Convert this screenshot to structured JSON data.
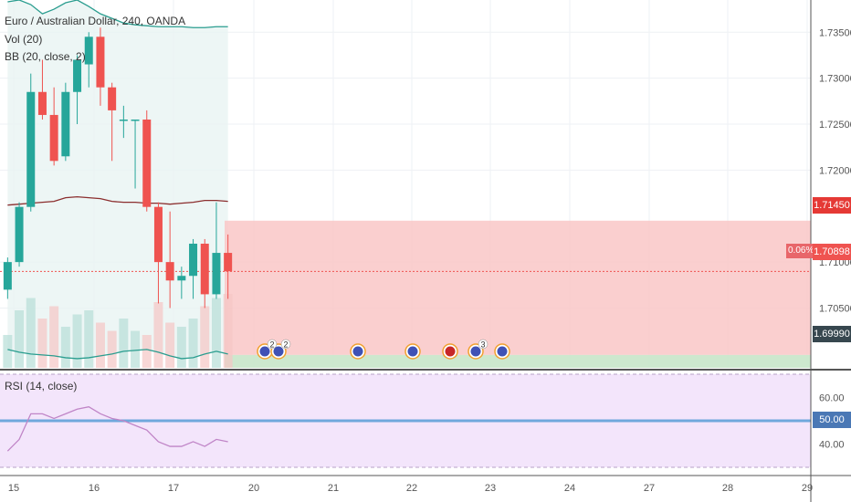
{
  "symbol_title": "Euro / Australian Dollar, 240, OANDA",
  "volume_label": "Vol (20)",
  "bb_label": "BB (20, close, 2)",
  "rsi_label": "RSI (14, close)",
  "price_axis": {
    "ticks": [
      "1.73500",
      "1.73000",
      "1.72500",
      "1.72000",
      "1.71000",
      "1.70500"
    ],
    "tick_values": [
      1.735,
      1.73,
      1.725,
      1.72,
      1.71,
      1.705
    ],
    "range": [
      1.6985,
      1.7385
    ]
  },
  "rsi_axis": {
    "ticks": [
      "60.00",
      "40.00"
    ],
    "tick_values": [
      60,
      40
    ],
    "range": [
      30,
      70
    ],
    "level_label": "50.00",
    "level_value": 50
  },
  "time_axis": {
    "ticks": [
      "15",
      "16",
      "17",
      "20",
      "21",
      "22",
      "23",
      "24",
      "27",
      "28",
      "29"
    ]
  },
  "markers": {
    "stop_loss_label": "1.71450",
    "stop_loss_value": 1.7145,
    "current_price_label": "1.70898",
    "current_price_value": 1.70898,
    "change_label": "0.06%",
    "target_label": "1.69990",
    "target_value": 1.6999
  },
  "event_counts": [
    "2",
    "2",
    "3"
  ],
  "colors": {
    "up": "#26a69a",
    "down": "#ef5350",
    "bb_band": "#2a9d8f",
    "bb_basis": "#8b2e2e",
    "loss_zone": "#f9c7c7",
    "profit_zone": "#c8e6c9",
    "rsi_line": "#c085c7",
    "rsi_bg": "#f3e5fb",
    "rsi_mid": "#6fa8dc",
    "stop_bg": "#e53935",
    "target_bg": "#37474f"
  },
  "chart_data": [
    {
      "type": "candlestick",
      "title": "Euro / Australian Dollar, 240, OANDA",
      "ylim": [
        1.6985,
        1.7385
      ],
      "candles": [
        {
          "o": 1.707,
          "h": 1.7105,
          "l": 1.706,
          "c": 1.71
        },
        {
          "o": 1.71,
          "h": 1.7165,
          "l": 1.7095,
          "c": 1.716
        },
        {
          "o": 1.716,
          "h": 1.7305,
          "l": 1.7155,
          "c": 1.7285
        },
        {
          "o": 1.7285,
          "h": 1.732,
          "l": 1.7255,
          "c": 1.726
        },
        {
          "o": 1.726,
          "h": 1.729,
          "l": 1.7205,
          "c": 1.721
        },
        {
          "o": 1.7215,
          "h": 1.7295,
          "l": 1.721,
          "c": 1.7285
        },
        {
          "o": 1.7285,
          "h": 1.7325,
          "l": 1.725,
          "c": 1.732
        },
        {
          "o": 1.7315,
          "h": 1.735,
          "l": 1.729,
          "c": 1.7345
        },
        {
          "o": 1.7345,
          "h": 1.7355,
          "l": 1.727,
          "c": 1.729
        },
        {
          "o": 1.729,
          "h": 1.7295,
          "l": 1.721,
          "c": 1.7265
        },
        {
          "o": 1.7255,
          "h": 1.727,
          "l": 1.7235,
          "c": 1.7255
        },
        {
          "o": 1.7255,
          "h": 1.7255,
          "l": 1.718,
          "c": 1.7255
        },
        {
          "o": 1.7255,
          "h": 1.7265,
          "l": 1.7155,
          "c": 1.716
        },
        {
          "o": 1.716,
          "h": 1.7165,
          "l": 1.7055,
          "c": 1.71
        },
        {
          "o": 1.71,
          "h": 1.7155,
          "l": 1.705,
          "c": 1.708
        },
        {
          "o": 1.708,
          "h": 1.7095,
          "l": 1.706,
          "c": 1.7085
        },
        {
          "o": 1.7085,
          "h": 1.7125,
          "l": 1.706,
          "c": 1.712
        },
        {
          "o": 1.712,
          "h": 1.7125,
          "l": 1.705,
          "c": 1.7065
        },
        {
          "o": 1.7065,
          "h": 1.7165,
          "l": 1.706,
          "c": 1.711
        },
        {
          "o": 1.711,
          "h": 1.713,
          "l": 1.706,
          "c": 1.709
        }
      ],
      "volume": [
        40,
        70,
        85,
        60,
        75,
        50,
        65,
        70,
        55,
        45,
        60,
        45,
        40,
        80,
        55,
        50,
        60,
        75,
        85,
        90
      ]
    },
    {
      "type": "line",
      "title": "RSI (14, close)",
      "ylim": [
        30,
        70
      ],
      "values": [
        37,
        42,
        53,
        53,
        51,
        53,
        55,
        56,
        53,
        51,
        50,
        48,
        46,
        41,
        39,
        39,
        41,
        39,
        42,
        41
      ]
    }
  ]
}
